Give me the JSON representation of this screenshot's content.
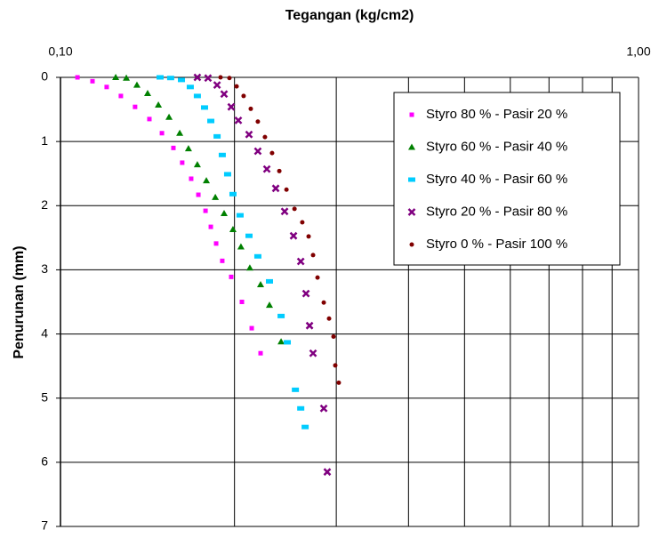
{
  "chart_data": {
    "type": "scatter",
    "title": "Tegangan (kg/cm2)",
    "y_label": "Penurunan (mm)",
    "x_scale": "log",
    "xlim": [
      0.1,
      1
    ],
    "xticks": [
      {
        "value": 0.1,
        "label": "0,10"
      },
      {
        "value": 1,
        "label": "1,00"
      }
    ],
    "xgrid": [
      0.2,
      0.3,
      0.4,
      0.5,
      0.6,
      0.7,
      0.8,
      0.9
    ],
    "x_axis_position": "top",
    "ylim": [
      0,
      7
    ],
    "yticks": [
      0,
      1,
      2,
      3,
      4,
      5,
      6,
      7
    ],
    "y_inverted": true,
    "grid": true,
    "legend_position": "upper right",
    "series": [
      {
        "name": "Styro 80 % - Pasir 20 %",
        "color": "#ff00ff",
        "marker": "square",
        "x": [
          0.107,
          0.1136,
          0.1202,
          0.1272,
          0.1346,
          0.1425,
          0.1498,
          0.1568,
          0.1624,
          0.1683,
          0.1732,
          0.1782,
          0.182,
          0.1859,
          0.1905,
          0.1974,
          0.206,
          0.2142,
          0.2219
        ],
        "values": [
          0,
          0.06,
          0.15,
          0.29,
          0.46,
          0.65,
          0.87,
          1.1,
          1.33,
          1.58,
          1.83,
          2.08,
          2.33,
          2.59,
          2.86,
          3.11,
          3.5,
          3.91,
          4.3
        ]
      },
      {
        "name": "Styro 60 % - Pasir 40 %",
        "color": "#008000",
        "marker": "triangle",
        "x": [
          0.1246,
          0.13,
          0.1356,
          0.1415,
          0.1477,
          0.1541,
          0.1608,
          0.1665,
          0.1725,
          0.1788,
          0.1853,
          0.1919,
          0.1988,
          0.2052,
          0.2126,
          0.2219,
          0.2299,
          0.2408
        ],
        "values": [
          0,
          0.01,
          0.12,
          0.25,
          0.43,
          0.62,
          0.87,
          1.11,
          1.36,
          1.61,
          1.87,
          2.12,
          2.37,
          2.64,
          2.97,
          3.23,
          3.55,
          4.12
        ]
      },
      {
        "name": "Styro 40 % - Pasir 60 %",
        "color": "#00ccff",
        "marker": "dash",
        "x": [
          0.1487,
          0.1551,
          0.1619,
          0.1677,
          0.1725,
          0.1775,
          0.182,
          0.1866,
          0.1905,
          0.1946,
          0.1988,
          0.2045,
          0.2119,
          0.2195,
          0.2299,
          0.2408,
          0.2468,
          0.2549,
          0.2604,
          0.265
        ],
        "values": [
          0,
          0.01,
          0.04,
          0.15,
          0.29,
          0.47,
          0.68,
          0.92,
          1.21,
          1.51,
          1.82,
          2.15,
          2.47,
          2.79,
          3.18,
          3.72,
          4.13,
          4.87,
          5.16,
          5.45
        ]
      },
      {
        "name": "Styro 20 % - Pasir 80 %",
        "color": "#800080",
        "marker": "x",
        "x": [
          0.1725,
          0.18,
          0.1866,
          0.1919,
          0.1974,
          0.2031,
          0.2119,
          0.2195,
          0.2275,
          0.2357,
          0.2442,
          0.253,
          0.2604,
          0.2659,
          0.2697,
          0.2735,
          0.2854,
          0.2894
        ],
        "values": [
          0,
          0.01,
          0.12,
          0.26,
          0.46,
          0.67,
          0.89,
          1.15,
          1.43,
          1.73,
          2.09,
          2.47,
          2.87,
          3.37,
          3.87,
          4.3,
          5.16,
          6.15
        ]
      },
      {
        "name": "Styro 0 % - Pasir 100 %",
        "color": "#800000",
        "marker": "circle",
        "x": [
          0.1892,
          0.196,
          0.2017,
          0.2074,
          0.2134,
          0.2195,
          0.2258,
          0.2323,
          0.2391,
          0.246,
          0.254,
          0.262,
          0.2687,
          0.2735,
          0.2784,
          0.2854,
          0.2915,
          0.2967,
          0.2988,
          0.303
        ],
        "values": [
          0,
          0.01,
          0.14,
          0.29,
          0.49,
          0.69,
          0.93,
          1.18,
          1.46,
          1.75,
          2.05,
          2.26,
          2.48,
          2.77,
          3.12,
          3.51,
          3.76,
          4.04,
          4.49,
          4.76
        ]
      }
    ]
  }
}
